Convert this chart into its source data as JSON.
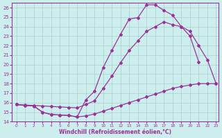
{
  "xlabel": "Windchill (Refroidissement éolien,°C)",
  "bg_color": "#cceeed",
  "grid_color": "#aacccc",
  "line_color": "#993399",
  "xmin": 0,
  "xmax": 23,
  "ymin": 14,
  "ymax": 26,
  "curve1_x": [
    0,
    1,
    2,
    3,
    4,
    5,
    6,
    7,
    8,
    9,
    10,
    11,
    12,
    13,
    14,
    15,
    16,
    17,
    18,
    19,
    20,
    21
  ],
  "curve1_y": [
    15.8,
    15.7,
    15.65,
    15.0,
    14.75,
    14.7,
    14.65,
    14.5,
    16.3,
    17.2,
    19.7,
    21.5,
    23.2,
    24.8,
    24.95,
    26.3,
    26.3,
    25.7,
    25.2,
    24.0,
    23.0,
    20.3
  ],
  "curve2_x": [
    0,
    1,
    2,
    3,
    4,
    5,
    6,
    7,
    8,
    9,
    10,
    11,
    12,
    13,
    14,
    15,
    16,
    17,
    18,
    19,
    20,
    21,
    22,
    23
  ],
  "curve2_y": [
    15.8,
    15.75,
    15.7,
    15.65,
    15.6,
    15.55,
    15.5,
    15.45,
    15.8,
    16.2,
    17.5,
    18.8,
    20.2,
    21.5,
    22.5,
    23.5,
    24.0,
    24.5,
    24.2,
    24.0,
    23.5,
    22.0,
    20.5,
    18.0
  ],
  "curve3_x": [
    0,
    1,
    2,
    3,
    4,
    5,
    6,
    7,
    8,
    9,
    10,
    11,
    12,
    13,
    14,
    15,
    16,
    17,
    18,
    19,
    20,
    21,
    22,
    23
  ],
  "curve3_y": [
    15.8,
    15.7,
    15.65,
    15.0,
    14.75,
    14.7,
    14.65,
    14.5,
    14.6,
    14.8,
    15.1,
    15.4,
    15.7,
    16.0,
    16.3,
    16.6,
    16.9,
    17.2,
    17.5,
    17.7,
    17.85,
    18.0,
    18.0,
    18.0
  ]
}
